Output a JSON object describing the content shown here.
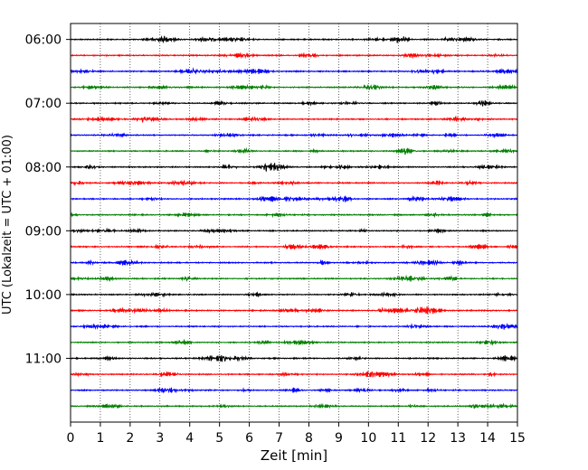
{
  "chart_data": {
    "type": "line",
    "title": "",
    "xlabel": "Zeit  [min]",
    "ylabel": "UTC (Lokalzeit = UTC + 01:00)",
    "xlim": [
      0,
      15
    ],
    "x_ticks": [
      "0",
      "1",
      "2",
      "3",
      "4",
      "5",
      "6",
      "7",
      "8",
      "9",
      "10",
      "11",
      "12",
      "13",
      "14",
      "15"
    ],
    "y_tick_labels": [
      "06:00",
      "07:00",
      "08:00",
      "09:00",
      "10:00",
      "11:00"
    ],
    "ylim": [
      "05:45",
      "12:00"
    ],
    "grid": "vertical dotted lines at each minute",
    "trace_interval_minutes": 15,
    "trace_count": 24,
    "trace_start_times": [
      "06:00",
      "06:15",
      "06:30",
      "06:45",
      "07:00",
      "07:15",
      "07:30",
      "07:45",
      "08:00",
      "08:15",
      "08:30",
      "08:45",
      "09:00",
      "09:15",
      "09:30",
      "09:45",
      "10:00",
      "10:15",
      "10:30",
      "10:45",
      "11:00",
      "11:15",
      "11:30",
      "11:45"
    ],
    "color_cycle": [
      "#000000",
      "#ff0000",
      "#0000ff",
      "#007f00"
    ]
  }
}
